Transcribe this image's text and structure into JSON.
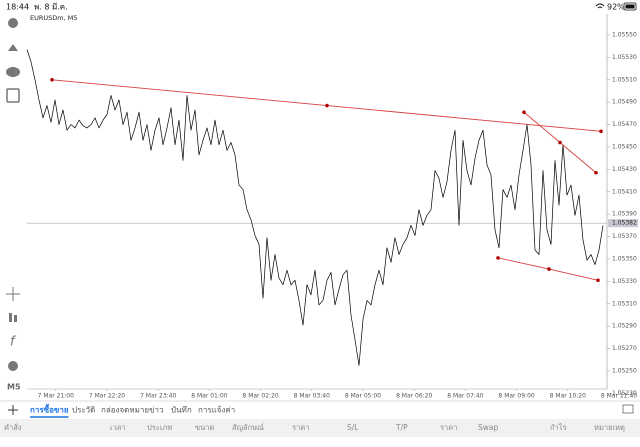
{
  "status_bar": {
    "time": "18:44",
    "date": "พ. 8 มี.ค.",
    "battery": "92%"
  },
  "sidebar": {
    "timeframe": "M5"
  },
  "chart": {
    "type": "line",
    "title": "EURUSDm, M5",
    "color": "#000000",
    "xlim": [
      0,
      148
    ],
    "ylim": [
      1.0523,
      1.05569
    ],
    "xticks": [
      {
        "value": 7.2,
        "label": "7 Mar 21:00"
      },
      {
        "value": 20,
        "label": "7 Mar 22:20"
      },
      {
        "value": 32.8,
        "label": "7 Mar 23:40"
      },
      {
        "value": 45.6,
        "label": "8 Mar 01:00"
      },
      {
        "value": 58.4,
        "label": "8 Mar 02:20"
      },
      {
        "value": 71.2,
        "label": "8 Mar 03:40"
      },
      {
        "value": 84,
        "label": "8 Mar 05:00"
      },
      {
        "value": 96.8,
        "label": "8 Mar 06:20"
      },
      {
        "value": 109.6,
        "label": "8 Mar 07:40"
      },
      {
        "value": 122.4,
        "label": "8 Mar 09:00"
      },
      {
        "value": 135.2,
        "label": "8 Mar 10:20"
      },
      {
        "value": 148,
        "label": "8 Mar 11:40"
      }
    ],
    "yticks": [
      {
        "value": 1.0555,
        "label": "1.05550"
      },
      {
        "value": 1.0553,
        "label": "1.05530"
      },
      {
        "value": 1.0551,
        "label": "1.05510"
      },
      {
        "value": 1.0549,
        "label": "1.05490"
      },
      {
        "value": 1.0547,
        "label": "1.05470"
      },
      {
        "value": 1.0545,
        "label": "1.05450"
      },
      {
        "value": 1.0543,
        "label": "1.05430"
      },
      {
        "value": 1.0541,
        "label": "1.05410"
      },
      {
        "value": 1.0539,
        "label": "1.05390"
      },
      {
        "value": 1.0537,
        "label": "1.05370"
      },
      {
        "value": 1.0535,
        "label": "1.05350"
      },
      {
        "value": 1.0533,
        "label": "1.05330"
      },
      {
        "value": 1.0531,
        "label": "1.05310"
      },
      {
        "value": 1.0529,
        "label": "1.05290"
      },
      {
        "value": 1.0527,
        "label": "1.05270"
      },
      {
        "value": 1.0525,
        "label": "1.05250"
      },
      {
        "value": 1.0523,
        "label": "1.05230"
      }
    ],
    "x": [
      0,
      1,
      2,
      3,
      4,
      5,
      6,
      7,
      8,
      9,
      10,
      11,
      12,
      13,
      14,
      15,
      16,
      17,
      18,
      19,
      20,
      21,
      22,
      23,
      24,
      25,
      26,
      27,
      28,
      29,
      30,
      31,
      32,
      33,
      34,
      35,
      36,
      37,
      38,
      39,
      40,
      41,
      42,
      43,
      44,
      45,
      46,
      47,
      48,
      49,
      50,
      51,
      52,
      53,
      54,
      55,
      56,
      57,
      58,
      59,
      60,
      61,
      62,
      63,
      64,
      65,
      66,
      67,
      68,
      69,
      70,
      71,
      72,
      73,
      74,
      75,
      76,
      77,
      78,
      79,
      80,
      81,
      82,
      83,
      84,
      85,
      86,
      87,
      88,
      89,
      90,
      91,
      92,
      93,
      94,
      95,
      96,
      97,
      98,
      99,
      100,
      101,
      102,
      103,
      104,
      105,
      106,
      107,
      108,
      109,
      110,
      111,
      112,
      113,
      114,
      115,
      116,
      117,
      118,
      119,
      120,
      121,
      122,
      123,
      124,
      125,
      126,
      127,
      128,
      129,
      130,
      131,
      132,
      133,
      134,
      135,
      136,
      137,
      138,
      139,
      140,
      141,
      142,
      143,
      144
    ],
    "values": [
      1.05537,
      1.05526,
      1.0551,
      1.05492,
      1.05476,
      1.05487,
      1.05472,
      1.05492,
      1.0547,
      1.05483,
      1.05465,
      1.0547,
      1.05467,
      1.05474,
      1.05469,
      1.05467,
      1.0547,
      1.05476,
      1.05467,
      1.05474,
      1.05479,
      1.05496,
      1.05483,
      1.05492,
      1.0547,
      1.05481,
      1.05456,
      1.05467,
      1.05481,
      1.05456,
      1.0547,
      1.05447,
      1.05465,
      1.05476,
      1.05452,
      1.05467,
      1.05485,
      1.05452,
      1.05474,
      1.05438,
      1.05496,
      1.05465,
      1.05483,
      1.05443,
      1.05456,
      1.05467,
      1.05452,
      1.05474,
      1.05452,
      1.05465,
      1.05447,
      1.05454,
      1.05443,
      1.05416,
      1.05412,
      1.05394,
      1.05385,
      1.05371,
      1.05363,
      1.05315,
      1.05369,
      1.05331,
      1.05354,
      1.05333,
      1.05327,
      1.0534,
      1.05327,
      1.05331,
      1.05313,
      1.05291,
      1.05327,
      1.05318,
      1.0534,
      1.05309,
      1.05313,
      1.05331,
      1.05338,
      1.05309,
      1.05323,
      1.05336,
      1.0534,
      1.053,
      1.05278,
      1.05255,
      1.05296,
      1.05313,
      1.05309,
      1.05327,
      1.0534,
      1.05327,
      1.0536,
      1.05347,
      1.05369,
      1.05354,
      1.05363,
      1.05369,
      1.0538,
      1.05371,
      1.05394,
      1.0538,
      1.05389,
      1.05394,
      1.05429,
      1.05422,
      1.05405,
      1.05419,
      1.05447,
      1.05465,
      1.0538,
      1.05456,
      1.05429,
      1.05416,
      1.0544,
      1.05456,
      1.05465,
      1.05434,
      1.05425,
      1.05376,
      1.0536,
      1.05412,
      1.05405,
      1.05416,
      1.05394,
      1.05425,
      1.05447,
      1.0547,
      1.05434,
      1.05358,
      1.05354,
      1.05429,
      1.05376,
      1.05363,
      1.05438,
      1.05398,
      1.05452,
      1.05407,
      1.05416,
      1.05389,
      1.05407,
      1.05367,
      1.05349,
      1.05354,
      1.05345,
      1.05358,
      1.0538
    ],
    "current_price": {
      "value": 1.05382,
      "label": "1.05382"
    },
    "trend_lines": [
      {
        "color": "#d94040",
        "x": [
          6.25,
          75,
          143.5
        ],
        "values": [
          1.0551,
          1.05487,
          1.05464
        ]
      },
      {
        "color": "#d94040",
        "x": [
          124.25,
          133.25,
          142.25
        ],
        "values": [
          1.05481,
          1.05454,
          1.05427
        ]
      },
      {
        "color": "#d94040",
        "x": [
          117.75,
          130.5,
          142.75
        ],
        "values": [
          1.05351,
          1.05341,
          1.05331
        ]
      }
    ]
  },
  "tabs": [
    "การซื้อขาย",
    "ประวัติ",
    "กล่องจดหมาย",
    "ข่าว",
    "บันทึก",
    "การแจ้งค่า"
  ],
  "active_tab": 0,
  "columns": [
    "คำสั่ง",
    "เวลา",
    "ประเภท",
    "ขนาด",
    "สัญลักษณ์",
    "ราคา",
    "S/L",
    "T/P",
    "ราคา",
    "Swap",
    "กำไร",
    "หมายเหตุ"
  ]
}
